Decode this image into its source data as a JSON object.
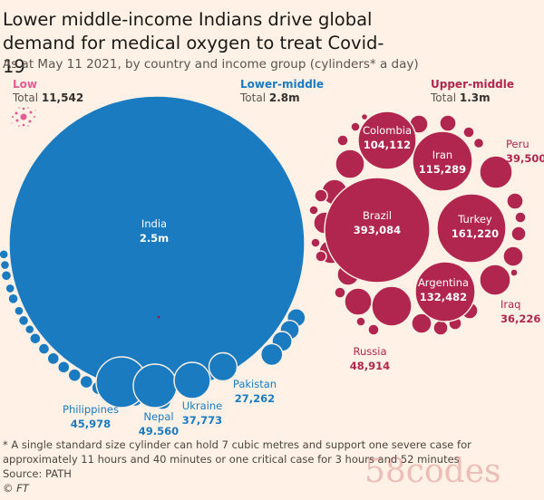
{
  "title": "Lower middle-income Indians drive global demand for medical oxygen to treat Covid-19",
  "subtitle": "As at May 11 2021, by country and income group (cylinders* a day)",
  "footnote": "* A single standard size cylinder can hold 7 cubic metres and support one severe case for approximately 11 hours and 40 minutes or one critical case for 3 hours and 52 minutes",
  "source": "Source: PATH",
  "credit": "© FT",
  "watermark": "58codes",
  "colors": {
    "low": "#e55b93",
    "lower_middle": "#1a7bc1",
    "upper_middle": "#b1264f",
    "background": "#fff1e5"
  },
  "chart_data": {
    "type": "packed-bubble",
    "unit": "cylinders a day",
    "groups": [
      {
        "id": "low",
        "name": "Low",
        "total_label": "Total",
        "total": "11,542",
        "countries": []
      },
      {
        "id": "lower_middle",
        "name": "Lower-middle",
        "total_label": "Total",
        "total": "2.8m",
        "countries": [
          {
            "name": "India",
            "label": "2.5m",
            "value": 2500000
          },
          {
            "name": "Philippines",
            "label": "45,978",
            "value": 45978
          },
          {
            "name": "Nepal",
            "label": "49,560",
            "value": 49560
          },
          {
            "name": "Ukraine",
            "label": "37,773",
            "value": 37773
          },
          {
            "name": "Pakistan",
            "label": "27,262",
            "value": 27262
          }
        ]
      },
      {
        "id": "upper_middle",
        "name": "Upper-middle",
        "total_label": "Total",
        "total": "1.3m",
        "countries": [
          {
            "name": "Brazil",
            "label": "393,084",
            "value": 393084
          },
          {
            "name": "Colombia",
            "label": "104,112",
            "value": 104112
          },
          {
            "name": "Iran",
            "label": "115,289",
            "value": 115289
          },
          {
            "name": "Turkey",
            "label": "161,220",
            "value": 161220
          },
          {
            "name": "Argentina",
            "label": "132,482",
            "value": 132482
          },
          {
            "name": "Peru",
            "label": "39,500",
            "value": 39500
          },
          {
            "name": "Iraq",
            "label": "36,226",
            "value": 36226
          },
          {
            "name": "Russia",
            "label": "48,914",
            "value": 48914
          }
        ]
      }
    ]
  }
}
